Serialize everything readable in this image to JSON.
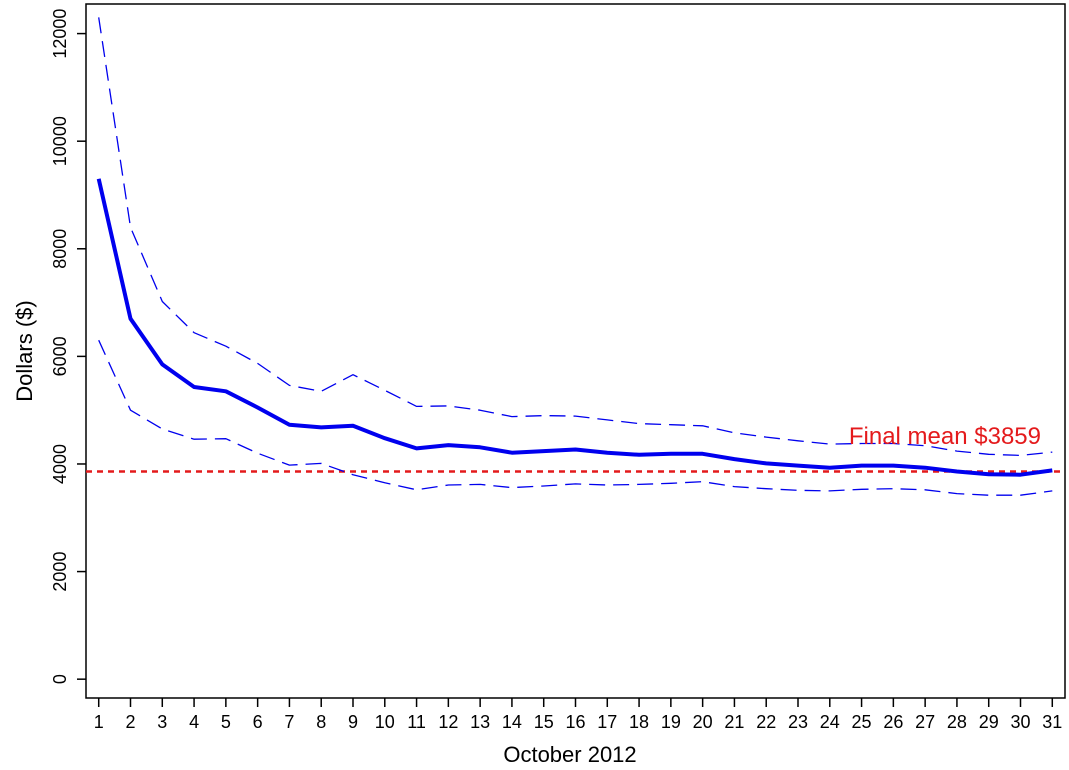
{
  "chart_data": {
    "type": "line",
    "xlabel": "October 2012",
    "ylabel": "Dollars ($)",
    "x": [
      1,
      2,
      3,
      4,
      5,
      6,
      7,
      8,
      9,
      10,
      11,
      12,
      13,
      14,
      15,
      16,
      17,
      18,
      19,
      20,
      21,
      22,
      23,
      24,
      25,
      26,
      27,
      28,
      29,
      30,
      31
    ],
    "xlim": [
      0.6,
      31.4
    ],
    "ylim": [
      -350,
      12550
    ],
    "yticks": [
      0,
      2000,
      4000,
      6000,
      8000,
      10000,
      12000
    ],
    "grid": false,
    "series": [
      {
        "role": "mean",
        "style": "solid",
        "color": "#0000ee",
        "values": [
          9300,
          6700,
          5850,
          5430,
          5350,
          5050,
          4730,
          4680,
          4710,
          4480,
          4290,
          4350,
          4310,
          4210,
          4240,
          4270,
          4210,
          4170,
          4190,
          4190,
          4090,
          4010,
          3970,
          3930,
          3970,
          3970,
          3930,
          3860,
          3810,
          3800,
          3880
        ]
      },
      {
        "role": "upper-bound",
        "style": "dashed",
        "color": "#0000ee",
        "values": [
          12300,
          8400,
          7020,
          6440,
          6190,
          5870,
          5460,
          5350,
          5660,
          5370,
          5070,
          5080,
          5000,
          4880,
          4900,
          4890,
          4820,
          4750,
          4730,
          4710,
          4580,
          4500,
          4430,
          4370,
          4380,
          4380,
          4340,
          4240,
          4180,
          4160,
          4220
        ]
      },
      {
        "role": "lower-bound",
        "style": "dashed",
        "color": "#0000ee",
        "values": [
          6300,
          5000,
          4650,
          4460,
          4470,
          4200,
          3980,
          4010,
          3800,
          3650,
          3520,
          3610,
          3620,
          3560,
          3590,
          3630,
          3610,
          3620,
          3640,
          3670,
          3580,
          3540,
          3510,
          3500,
          3530,
          3540,
          3520,
          3450,
          3420,
          3420,
          3500
        ]
      }
    ],
    "reference_line": {
      "value": 3859,
      "color": "#e41a1c",
      "style": "dotted",
      "label": "Final mean $3859"
    }
  }
}
